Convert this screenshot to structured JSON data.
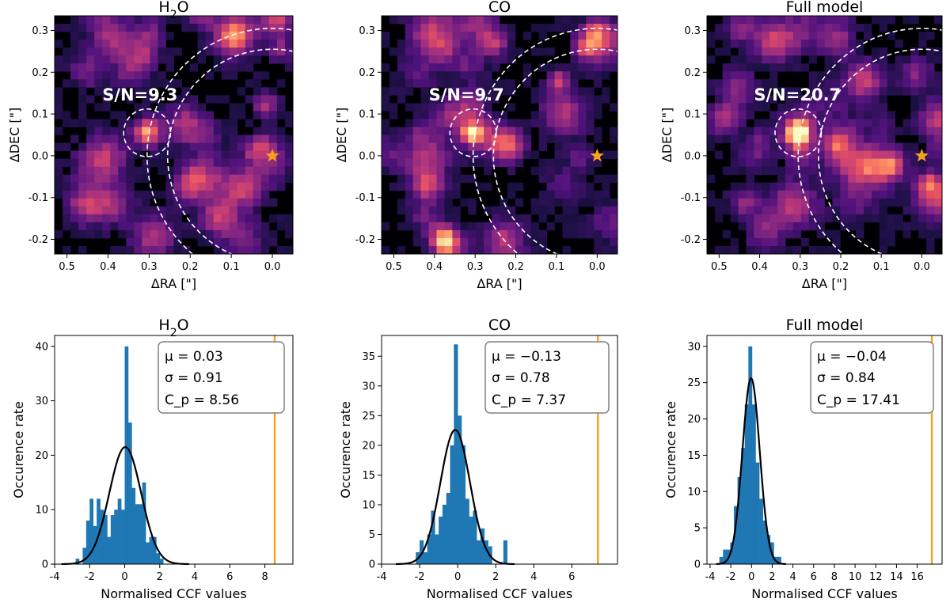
{
  "chart_data": [
    {
      "type": "heatmap",
      "title": "H2O",
      "xlabel": "ΔRA [\"]",
      "ylabel": "ΔDEC [\"]",
      "xlim": [
        0.53,
        -0.05
      ],
      "ylim": [
        -0.235,
        0.335
      ],
      "xticks": [
        "0.5",
        "0.4",
        "0.3",
        "0.2",
        "0.1",
        "0.0"
      ],
      "yticks": [
        "-0.2",
        "-0.1",
        "0.0",
        "0.1",
        "0.2",
        "0.3"
      ],
      "annotation": "S/N=9.3",
      "planet": [
        0.305,
        0.055
      ],
      "star": [
        0.0,
        0.0
      ],
      "aperture_radius": 0.057,
      "arc_radii": [
        0.305,
        0.255
      ],
      "colormap": "magma",
      "star_color": "#f5a31a"
    },
    {
      "type": "heatmap",
      "title": "CO",
      "xlabel": "ΔRA [\"]",
      "ylabel": "ΔDEC [\"]",
      "xlim": [
        0.53,
        -0.05
      ],
      "ylim": [
        -0.235,
        0.335
      ],
      "xticks": [
        "0.5",
        "0.4",
        "0.3",
        "0.2",
        "0.1",
        "0.0"
      ],
      "yticks": [
        "-0.2",
        "-0.1",
        "0.0",
        "0.1",
        "0.2",
        "0.3"
      ],
      "annotation": "S/N=9.7",
      "planet": [
        0.305,
        0.055
      ],
      "star": [
        0.0,
        0.0
      ],
      "aperture_radius": 0.057,
      "arc_radii": [
        0.305,
        0.255
      ],
      "colormap": "magma",
      "star_color": "#f5a31a"
    },
    {
      "type": "heatmap",
      "title": "Full model",
      "xlabel": "ΔRA [\"]",
      "ylabel": "ΔDEC [\"]",
      "xlim": [
        0.53,
        -0.05
      ],
      "ylim": [
        -0.235,
        0.335
      ],
      "xticks": [
        "0.5",
        "0.4",
        "0.3",
        "0.2",
        "0.1",
        "0.0"
      ],
      "yticks": [
        "-0.2",
        "-0.1",
        "0.0",
        "0.1",
        "0.2",
        "0.3"
      ],
      "annotation": "S/N=20.7",
      "planet": [
        0.305,
        0.055
      ],
      "star": [
        0.0,
        0.0
      ],
      "aperture_radius": 0.057,
      "arc_radii": [
        0.305,
        0.255
      ],
      "colormap": "magma",
      "star_color": "#f5a31a"
    },
    {
      "type": "bar",
      "title": "H2O",
      "xlabel": "Normalised CCF values",
      "ylabel": "Occurence rate",
      "xlim": [
        -4,
        9.6
      ],
      "ylim": [
        0,
        42
      ],
      "xticks": [
        -4,
        -2,
        0,
        2,
        4,
        6,
        8
      ],
      "yticks": [
        0,
        10,
        20,
        30,
        40
      ],
      "bin_width": 0.2,
      "bin_left_edges": [
        -2.8,
        -2.6,
        -2.4,
        -2.2,
        -2.0,
        -1.8,
        -1.6,
        -1.4,
        -1.2,
        -1.0,
        -0.8,
        -0.6,
        -0.4,
        -0.2,
        0.0,
        0.2,
        0.4,
        0.6,
        0.8,
        1.0,
        1.2,
        1.4,
        1.6,
        1.8,
        2.0
      ],
      "counts": [
        1,
        0,
        3,
        8,
        12,
        7,
        12,
        10,
        9,
        5,
        9,
        10,
        12,
        10,
        40,
        26,
        14,
        11,
        11,
        15,
        4,
        5,
        5,
        2,
        1
      ],
      "gaussian": {
        "mu": 0.03,
        "sigma": 0.91,
        "peak": 21.5
      },
      "vline": {
        "x": 8.56,
        "color": "#f5a31a"
      },
      "stats": {
        "mu": "μ = 0.03",
        "sigma": "σ = 0.91",
        "cp": "C_p = 8.56"
      }
    },
    {
      "type": "bar",
      "title": "CO",
      "xlabel": "Normalised CCF values",
      "ylabel": "Occurence rate",
      "xlim": [
        -4,
        8.4
      ],
      "ylim": [
        0,
        38.5
      ],
      "xticks": [
        -4,
        -2,
        0,
        2,
        4,
        6
      ],
      "yticks": [
        0,
        5,
        10,
        15,
        20,
        25,
        30,
        35
      ],
      "bin_width": 0.2,
      "bin_left_edges": [
        -2.2,
        -2.0,
        -1.8,
        -1.6,
        -1.4,
        -1.2,
        -1.0,
        -0.8,
        -0.6,
        -0.4,
        -0.2,
        0.0,
        0.2,
        0.4,
        0.6,
        0.8,
        1.0,
        1.2,
        1.4,
        1.6,
        1.8,
        2.0,
        2.2,
        2.4
      ],
      "counts": [
        2,
        4,
        2,
        5,
        9,
        5,
        8,
        10,
        12,
        20,
        37,
        25,
        20,
        11,
        8,
        9,
        4,
        6,
        4,
        3,
        0,
        0,
        0,
        4
      ],
      "gaussian": {
        "mu": -0.13,
        "sigma": 0.78,
        "peak": 22.6
      },
      "vline": {
        "x": 7.37,
        "color": "#f5a31a"
      },
      "stats": {
        "mu": "μ = −0.13",
        "sigma": "σ = 0.78",
        "cp": "C_p = 7.37"
      }
    },
    {
      "type": "bar",
      "title": "Full model",
      "xlabel": "Normalised CCF values",
      "ylabel": "Occurence rate",
      "xlim": [
        -4.3,
        18.4
      ],
      "ylim": [
        0,
        31.5
      ],
      "xticks": [
        -4,
        -2,
        0,
        2,
        4,
        6,
        8,
        10,
        12,
        14,
        16
      ],
      "yticks": [
        0,
        5,
        10,
        15,
        20,
        25,
        30
      ],
      "bin_width": 0.35,
      "bin_left_edges": [
        -3.1,
        -2.75,
        -2.4,
        -2.05,
        -1.7,
        -1.35,
        -1.0,
        -0.65,
        -0.3,
        0.05,
        0.4,
        0.75,
        1.1,
        1.45,
        1.8,
        2.15,
        2.5
      ],
      "counts": [
        1,
        2,
        2,
        3,
        8,
        12,
        16,
        22,
        30,
        22,
        14,
        9,
        6,
        4,
        3,
        1,
        1
      ],
      "gaussian": {
        "mu": -0.04,
        "sigma": 0.84,
        "peak": 25.6
      },
      "vline": {
        "x": 17.41,
        "color": "#f5a31a"
      },
      "stats": {
        "mu": "μ = −0.04",
        "sigma": "σ = 0.84",
        "cp": "C_p = 17.41"
      }
    }
  ],
  "colors": {
    "bars": "#1f77b4",
    "gaussian": "#000000",
    "vline": "#f5a31a",
    "dashes": "#ffffff"
  }
}
